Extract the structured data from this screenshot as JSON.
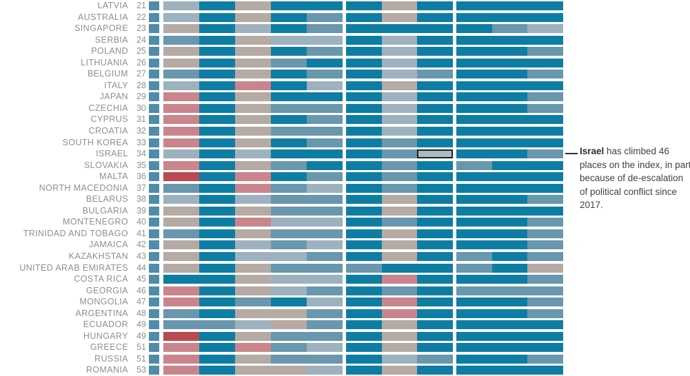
{
  "chart_data": {
    "type": "heatmap",
    "title": "",
    "description": "Country ranking heatmap, ranks 21-53, one narrow marker cell plus three groups of indicator cells per row, colored on a diverging red-to-teal categorical scale",
    "column_groups": [
      1,
      5,
      3,
      3
    ],
    "palette": {
      "s": "#4f8caa",
      "T": "#0e7da4",
      "M": "#6897ae",
      "L": "#9db2be",
      "N": "#b5aaa4",
      "S": "#ca858c",
      "R": "#ba4a52"
    },
    "palette_legend": {
      "s": "row marker blue",
      "T": "dark teal",
      "M": "medium blue",
      "L": "light blue-gray",
      "N": "neutral tan-gray",
      "S": "salmon red",
      "R": "dark red",
      "H": "highlighted cell (light gray-blue fill, dark outline)"
    },
    "highlight": {
      "country": "ISRAEL",
      "cell_index": 8,
      "fill": "#a9bcc6",
      "border": "#1f1f1f"
    },
    "rows": [
      {
        "country": "LATVIA",
        "rank": "21",
        "cells": [
          "s",
          "L",
          "T",
          "N",
          "T",
          "T",
          "T",
          "N",
          "T",
          "T",
          "T",
          "T"
        ]
      },
      {
        "country": "AUSTRALIA",
        "rank": "22",
        "cells": [
          "s",
          "L",
          "T",
          "N",
          "T",
          "M",
          "T",
          "N",
          "T",
          "T",
          "T",
          "T"
        ]
      },
      {
        "country": "SINGAPORE",
        "rank": "23",
        "cells": [
          "s",
          "N",
          "T",
          "L",
          "T",
          "M",
          "T",
          "T",
          "T",
          "T",
          "M",
          "L"
        ]
      },
      {
        "country": "SERBIA",
        "rank": "24",
        "cells": [
          "s",
          "M",
          "T",
          "N",
          "L",
          "L",
          "T",
          "L",
          "T",
          "T",
          "T",
          "T"
        ]
      },
      {
        "country": "POLAND",
        "rank": "25",
        "cells": [
          "s",
          "N",
          "T",
          "N",
          "T",
          "M",
          "T",
          "L",
          "T",
          "T",
          "T",
          "M"
        ]
      },
      {
        "country": "LITHUANIA",
        "rank": "26",
        "cells": [
          "s",
          "N",
          "T",
          "N",
          "M",
          "T",
          "T",
          "L",
          "T",
          "T",
          "T",
          "T"
        ]
      },
      {
        "country": "BELGIUM",
        "rank": "27",
        "cells": [
          "s",
          "M",
          "T",
          "N",
          "T",
          "M",
          "T",
          "L",
          "M",
          "T",
          "T",
          "M"
        ]
      },
      {
        "country": "ITALY",
        "rank": "28",
        "cells": [
          "s",
          "L",
          "T",
          "S",
          "T",
          "L",
          "T",
          "N",
          "T",
          "T",
          "T",
          "T"
        ]
      },
      {
        "country": "JAPAN",
        "rank": "29",
        "cells": [
          "s",
          "S",
          "T",
          "N",
          "T",
          "T",
          "T",
          "L",
          "T",
          "T",
          "T",
          "M"
        ]
      },
      {
        "country": "CZECHIA",
        "rank": "30",
        "cells": [
          "s",
          "S",
          "T",
          "N",
          "M",
          "M",
          "T",
          "L",
          "T",
          "T",
          "T",
          "M"
        ]
      },
      {
        "country": "CYPRUS",
        "rank": "31",
        "cells": [
          "s",
          "S",
          "T",
          "N",
          "T",
          "M",
          "T",
          "L",
          "T",
          "T",
          "T",
          "T"
        ]
      },
      {
        "country": "CROATIA",
        "rank": "32",
        "cells": [
          "s",
          "S",
          "T",
          "N",
          "M",
          "M",
          "T",
          "L",
          "T",
          "T",
          "T",
          "T"
        ]
      },
      {
        "country": "SOUTH KOREA",
        "rank": "33",
        "cells": [
          "s",
          "S",
          "T",
          "N",
          "T",
          "M",
          "T",
          "M",
          "T",
          "T",
          "T",
          "T"
        ]
      },
      {
        "country": "ISRAEL",
        "rank": "34",
        "cells": [
          "s",
          "L",
          "T",
          "L",
          "T",
          "T",
          "T",
          "M",
          "H",
          "T",
          "T",
          "M"
        ]
      },
      {
        "country": "SLOVAKIA",
        "rank": "35",
        "cells": [
          "s",
          "S",
          "T",
          "N",
          "M",
          "T",
          "T",
          "M",
          "T",
          "M",
          "T",
          "T"
        ]
      },
      {
        "country": "MALTA",
        "rank": "36",
        "cells": [
          "s",
          "R",
          "T",
          "S",
          "T",
          "M",
          "T",
          "M",
          "T",
          "T",
          "T",
          "T"
        ]
      },
      {
        "country": "NORTH MACEDONIA",
        "rank": "37",
        "cells": [
          "s",
          "M",
          "T",
          "S",
          "M",
          "L",
          "T",
          "M",
          "T",
          "T",
          "T",
          "T"
        ]
      },
      {
        "country": "BELARUS",
        "rank": "38",
        "cells": [
          "s",
          "L",
          "T",
          "L",
          "M",
          "M",
          "T",
          "N",
          "T",
          "T",
          "T",
          "M"
        ]
      },
      {
        "country": "BULGARIA",
        "rank": "39",
        "cells": [
          "s",
          "N",
          "T",
          "N",
          "M",
          "M",
          "T",
          "N",
          "T",
          "T",
          "T",
          "T"
        ]
      },
      {
        "country": "MONTENEGRO",
        "rank": "40",
        "cells": [
          "s",
          "N",
          "T",
          "S",
          "L",
          "L",
          "T",
          "M",
          "T",
          "T",
          "T",
          "M"
        ]
      },
      {
        "country": "TRINIDAD AND TOBAGO",
        "rank": "41",
        "cells": [
          "s",
          "M",
          "T",
          "N",
          "M",
          "M",
          "T",
          "N",
          "T",
          "T",
          "T",
          "M"
        ]
      },
      {
        "country": "JAMAICA",
        "rank": "42",
        "cells": [
          "s",
          "N",
          "T",
          "L",
          "M",
          "L",
          "T",
          "N",
          "T",
          "T",
          "T",
          "M"
        ]
      },
      {
        "country": "KAZAKHSTAN",
        "rank": "43",
        "cells": [
          "s",
          "N",
          "T",
          "L",
          "L",
          "M",
          "T",
          "N",
          "T",
          "M",
          "T",
          "M"
        ]
      },
      {
        "country": "UNITED ARAB EMIRATES",
        "rank": "44",
        "cells": [
          "s",
          "N",
          "T",
          "N",
          "M",
          "M",
          "M",
          "T",
          "T",
          "M",
          "T",
          "N"
        ]
      },
      {
        "country": "COSTA RICA",
        "rank": "45",
        "cells": [
          "s",
          "T",
          "T",
          "N",
          "L",
          "L",
          "T",
          "S",
          "T",
          "T",
          "T",
          "M"
        ]
      },
      {
        "country": "GEORGIA",
        "rank": "46",
        "cells": [
          "s",
          "S",
          "T",
          "N",
          "L",
          "M",
          "T",
          "M",
          "T",
          "M",
          "M",
          "M"
        ]
      },
      {
        "country": "MONGOLIA",
        "rank": "47",
        "cells": [
          "s",
          "S",
          "T",
          "M",
          "T",
          "L",
          "T",
          "S",
          "T",
          "T",
          "T",
          "M"
        ]
      },
      {
        "country": "ARGENTINA",
        "rank": "48",
        "cells": [
          "s",
          "M",
          "T",
          "N",
          "N",
          "M",
          "T",
          "S",
          "T",
          "T",
          "T",
          "M"
        ]
      },
      {
        "country": "ECUADOR",
        "rank": "49",
        "cells": [
          "s",
          "M",
          "M",
          "L",
          "N",
          "M",
          "T",
          "N",
          "T",
          "T",
          "T",
          "T"
        ]
      },
      {
        "country": "HUNGARY",
        "rank": "49",
        "cells": [
          "s",
          "R",
          "T",
          "N",
          "M",
          "M",
          "T",
          "N",
          "T",
          "T",
          "T",
          "T"
        ]
      },
      {
        "country": "GREECE",
        "rank": "51",
        "cells": [
          "s",
          "S",
          "T",
          "S",
          "M",
          "L",
          "T",
          "N",
          "T",
          "T",
          "T",
          "T"
        ]
      },
      {
        "country": "RUSSIA",
        "rank": "51",
        "cells": [
          "s",
          "S",
          "T",
          "N",
          "M",
          "M",
          "T",
          "L",
          "M",
          "T",
          "T",
          "M"
        ]
      },
      {
        "country": "ROMANIA",
        "rank": "53",
        "cells": [
          "s",
          "S",
          "T",
          "N",
          "N",
          "L",
          "T",
          "N",
          "T",
          "T",
          "T",
          "T"
        ]
      }
    ]
  },
  "annotation": {
    "lead": "Israel",
    "body": " has climbed 46 places on the index, in part because of de-escalation of political conflict since 2017."
  }
}
